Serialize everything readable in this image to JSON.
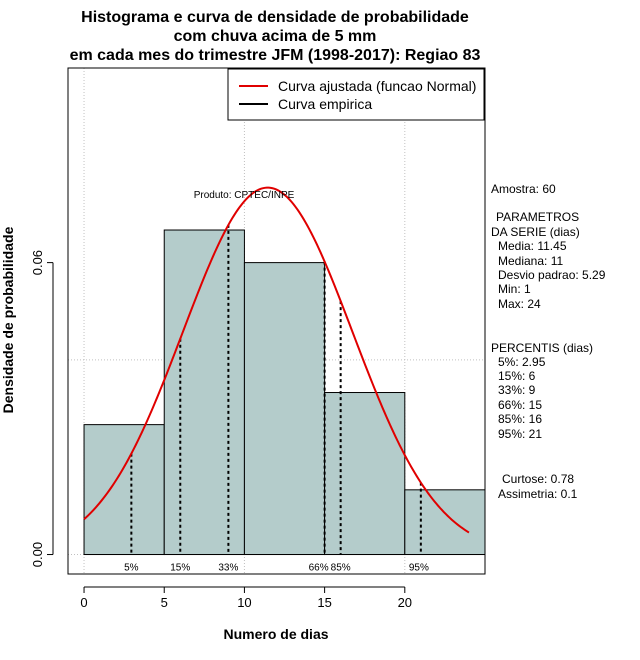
{
  "chart_data": {
    "type": "bar",
    "title_lines": [
      "Histograma e curva de densidade de probabilidade",
      "com chuva acima de 5 mm",
      "em cada mes do trimestre JFM (1998-2017): Regiao 83"
    ],
    "xlabel": "Numero de dias",
    "ylabel": "Densidade de probabilidade",
    "xlim": [
      -1,
      25
    ],
    "ylim": [
      -0.004,
      0.1
    ],
    "x_ticks": [
      0,
      5,
      10,
      15,
      20
    ],
    "x_tick_labels": [
      "0",
      "5",
      "10",
      "15",
      "20"
    ],
    "y_ticks": [
      0.0,
      0.06
    ],
    "y_tick_labels": [
      "0.00",
      "0.06"
    ],
    "grid_x": [
      0,
      10,
      20
    ],
    "grid_y": [
      0.0,
      0.04,
      0.1
    ],
    "bins": [
      {
        "from": 0,
        "to": 5,
        "density": 0.0267
      },
      {
        "from": 5,
        "to": 10,
        "density": 0.0667
      },
      {
        "from": 10,
        "to": 15,
        "density": 0.06
      },
      {
        "from": 15,
        "to": 20,
        "density": 0.0333
      },
      {
        "from": 20,
        "to": 25,
        "density": 0.0133
      }
    ],
    "normal_curve": {
      "mean": 11.45,
      "sd": 5.29,
      "from": 0,
      "to": 24
    },
    "percentile_markers": [
      {
        "label": "5%",
        "x": 2.95
      },
      {
        "label": "15%",
        "x": 6
      },
      {
        "label": "33%",
        "x": 9
      },
      {
        "label": "66%",
        "x": 15
      },
      {
        "label": "85%",
        "x": 16
      },
      {
        "label": "95%",
        "x": 21
      }
    ],
    "legend": [
      {
        "label": "Curva ajustada (funcao Normal)",
        "color": "#e00000"
      },
      {
        "label": "Curva empirica",
        "color": "#000000"
      }
    ],
    "legend_position": "top-right",
    "annotation": "Produto: CPTEC/INPE",
    "colors": {
      "bar_fill": "#b4cccb",
      "curve": "#e00000",
      "grid": "#c0c0c0"
    }
  },
  "stats": {
    "amostra": "Amostra: 60",
    "params_title_1": "PARAMETROS",
    "params_title_2": "DA SERIE (dias)",
    "media": "Media: 11.45",
    "mediana": "Mediana: 11",
    "desvio": "Desvio padrao: 5.29",
    "min": "Min: 1",
    "max": "Max: 24",
    "percentis_title": "PERCENTIS (dias)",
    "p5": "5%: 2.95",
    "p15": "15%: 6",
    "p33": "33%: 9",
    "p66": "66%: 15",
    "p85": "85%: 16",
    "p95": "95%: 21",
    "curtose": "Curtose: 0.78",
    "assimetria": "Assimetria: 0.1"
  }
}
